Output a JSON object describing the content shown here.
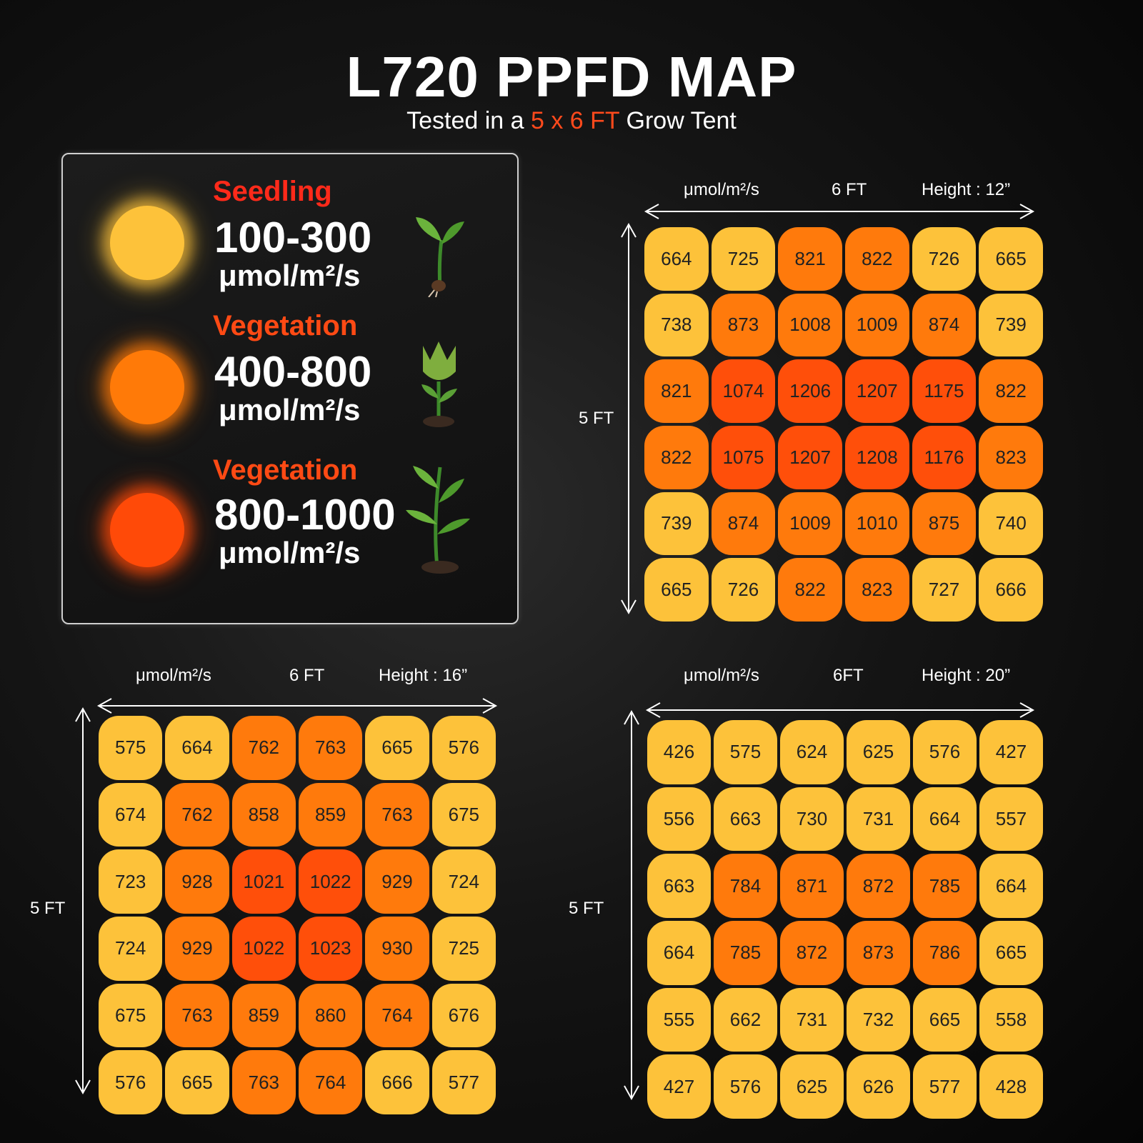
{
  "header": {
    "title": "L720 PPFD MAP",
    "subtitle_pre": "Tested in a ",
    "subtitle_highlight": "5 x 6 FT",
    "subtitle_post": " Grow Tent"
  },
  "legend": {
    "items": [
      {
        "stage": "Seedling",
        "range": "100-300",
        "unit": "μmol/m²/s",
        "stage_color": "#ff2a1a",
        "dot_color": "#fdc23a"
      },
      {
        "stage": "Vegetation",
        "range": "400-800",
        "unit": "μmol/m²/s",
        "stage_color": "#ff4a14",
        "dot_color": "#ff7a08"
      },
      {
        "stage": "Vegetation",
        "range": "800-1000",
        "unit": "μmol/m²/s",
        "stage_color": "#ff4a14",
        "dot_color": "#ff4a08"
      }
    ]
  },
  "colors": {
    "low": "#fdc23a",
    "mid": "#ff7a0c",
    "high": "#ff4f0a",
    "thresholds": [
      750,
      1020
    ]
  },
  "chart_data": [
    {
      "type": "heatmap",
      "unit_label": "μmol/m²/s",
      "width_label": "6 FT",
      "height_label": "Height : 12”",
      "side_label": "5 FT",
      "values": [
        [
          664,
          725,
          821,
          822,
          726,
          665
        ],
        [
          738,
          873,
          1008,
          1009,
          874,
          739
        ],
        [
          821,
          1074,
          1206,
          1207,
          1175,
          822
        ],
        [
          822,
          1075,
          1207,
          1208,
          1176,
          823
        ],
        [
          739,
          874,
          1009,
          1010,
          875,
          740
        ],
        [
          665,
          726,
          822,
          823,
          727,
          666
        ]
      ]
    },
    {
      "type": "heatmap",
      "unit_label": "μmol/m²/s",
      "width_label": "6 FT",
      "height_label": "Height : 16”",
      "side_label": "5 FT",
      "values": [
        [
          575,
          664,
          762,
          763,
          665,
          576
        ],
        [
          674,
          762,
          858,
          859,
          763,
          675
        ],
        [
          723,
          928,
          1021,
          1022,
          929,
          724
        ],
        [
          724,
          929,
          1022,
          1023,
          930,
          725
        ],
        [
          675,
          763,
          859,
          860,
          764,
          676
        ],
        [
          576,
          665,
          763,
          764,
          666,
          577
        ]
      ]
    },
    {
      "type": "heatmap",
      "unit_label": "μmol/m²/s",
      "width_label": "6FT",
      "height_label": "Height : 20”",
      "side_label": "5 FT",
      "values": [
        [
          426,
          575,
          624,
          625,
          576,
          427
        ],
        [
          556,
          663,
          730,
          731,
          664,
          557
        ],
        [
          663,
          784,
          871,
          872,
          785,
          664
        ],
        [
          664,
          785,
          872,
          873,
          786,
          665
        ],
        [
          555,
          662,
          731,
          732,
          665,
          558
        ],
        [
          427,
          576,
          625,
          626,
          577,
          428
        ]
      ]
    }
  ]
}
